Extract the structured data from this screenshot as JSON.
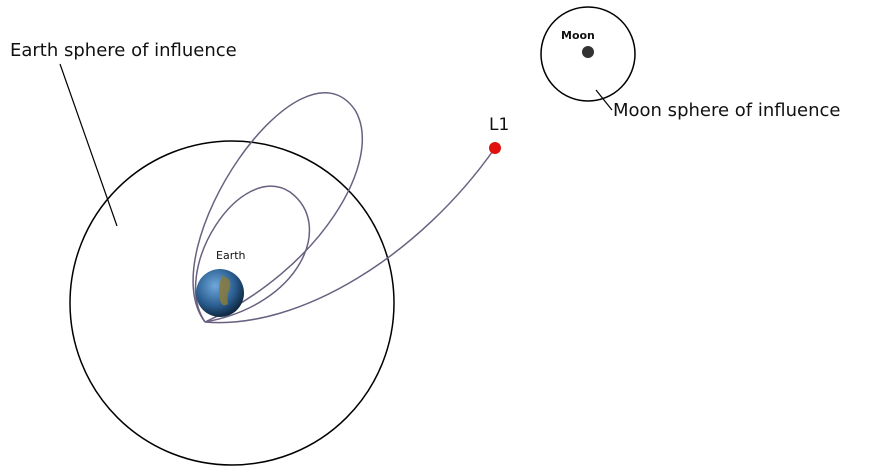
{
  "labels": {
    "earth_soi": "Earth sphere of influence",
    "moon_soi": "Moon sphere of influence",
    "l1": "L1",
    "earth": "Earth",
    "moon": "Moon"
  }
}
